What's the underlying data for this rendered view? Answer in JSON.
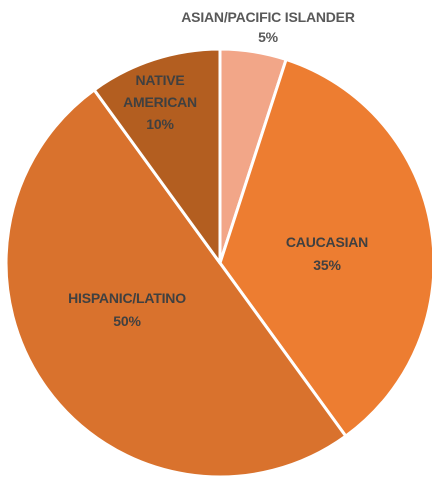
{
  "chart_data": {
    "type": "pie",
    "title": "",
    "slices": [
      {
        "label": "ASIAN/PACIFIC ISLANDER",
        "value": 5,
        "value_label": "5%",
        "color": "#F2A688",
        "label_color": "#595959"
      },
      {
        "label": "CAUCASIAN",
        "value": 35,
        "value_label": "35%",
        "color": "#ED7D31",
        "label_color": "#404040"
      },
      {
        "label": "HISPANIC/LATINO",
        "value": 50,
        "value_label": "50%",
        "color": "#D9722D",
        "label_color": "#404040"
      },
      {
        "label": "NATIVE",
        "label_line2": "AMERICAN",
        "value": 10,
        "value_label": "10%",
        "color": "#B35E20",
        "label_color": "#404040"
      }
    ],
    "start_angle_deg": 0,
    "direction": "clockwise",
    "legend": "none",
    "slice_border_color": "#FFFFFF"
  }
}
